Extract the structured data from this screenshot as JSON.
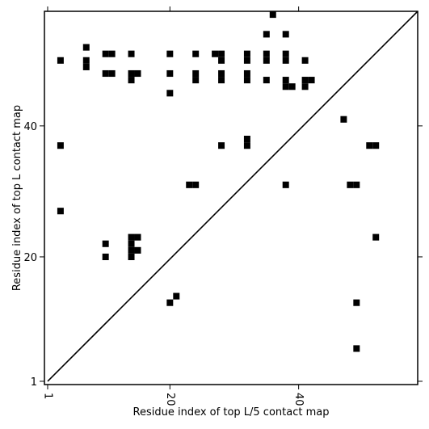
{
  "chart_data": {
    "type": "heatmap",
    "title": "",
    "xlabel": "Residue index of top L/5 contact map",
    "ylabel": "Residue index of top L contact map",
    "xlim": [
      0.5,
      58.5
    ],
    "ylim": [
      0.5,
      57.5
    ],
    "xticks": [
      1,
      20,
      40
    ],
    "yticks": [
      1,
      20,
      40
    ],
    "xtick_labels": [
      "1",
      "20",
      "40"
    ],
    "ytick_labels": [
      "1",
      "20",
      "40"
    ],
    "xtick_rotation_deg": 90,
    "cell_color": "#000000",
    "background": "#ffffff",
    "diagonal_line": true,
    "cells_top_L": [
      [
        36,
        57
      ],
      [
        35,
        54
      ],
      [
        38,
        54
      ],
      [
        7,
        52
      ],
      [
        10,
        51
      ],
      [
        11,
        51
      ],
      [
        14,
        51
      ],
      [
        20,
        51
      ],
      [
        24,
        51
      ],
      [
        27,
        51
      ],
      [
        28,
        51
      ],
      [
        32,
        51
      ],
      [
        35,
        51
      ],
      [
        38,
        51
      ],
      [
        3,
        50
      ],
      [
        7,
        50
      ],
      [
        28,
        50
      ],
      [
        32,
        50
      ],
      [
        35,
        50
      ],
      [
        38,
        50
      ],
      [
        41,
        50
      ],
      [
        7,
        49
      ],
      [
        10,
        48
      ],
      [
        11,
        48
      ],
      [
        14,
        48
      ],
      [
        15,
        48
      ],
      [
        20,
        48
      ],
      [
        24,
        48
      ],
      [
        28,
        48
      ],
      [
        32,
        48
      ],
      [
        14,
        47
      ],
      [
        24,
        47
      ],
      [
        28,
        47
      ],
      [
        32,
        47
      ],
      [
        35,
        47
      ],
      [
        38,
        47
      ],
      [
        41,
        47
      ],
      [
        42,
        47
      ],
      [
        38,
        46
      ],
      [
        39,
        46
      ],
      [
        41,
        46
      ],
      [
        20,
        45
      ],
      [
        32,
        38
      ],
      [
        32,
        37
      ],
      [
        3,
        37
      ],
      [
        28,
        37
      ],
      [
        23,
        31
      ],
      [
        24,
        31
      ],
      [
        38,
        31
      ],
      [
        3,
        27
      ],
      [
        14,
        23
      ],
      [
        15,
        23
      ],
      [
        10,
        22
      ],
      [
        14,
        22
      ],
      [
        14,
        21
      ],
      [
        15,
        21
      ],
      [
        10,
        20
      ],
      [
        14,
        20
      ],
      [
        21,
        14
      ],
      [
        20,
        13
      ]
    ],
    "cells_top_L5": [
      [
        47,
        41
      ],
      [
        51,
        37
      ],
      [
        52,
        37
      ],
      [
        48,
        31
      ],
      [
        49,
        31
      ],
      [
        52,
        23
      ],
      [
        49,
        13
      ],
      [
        49,
        6
      ]
    ]
  }
}
